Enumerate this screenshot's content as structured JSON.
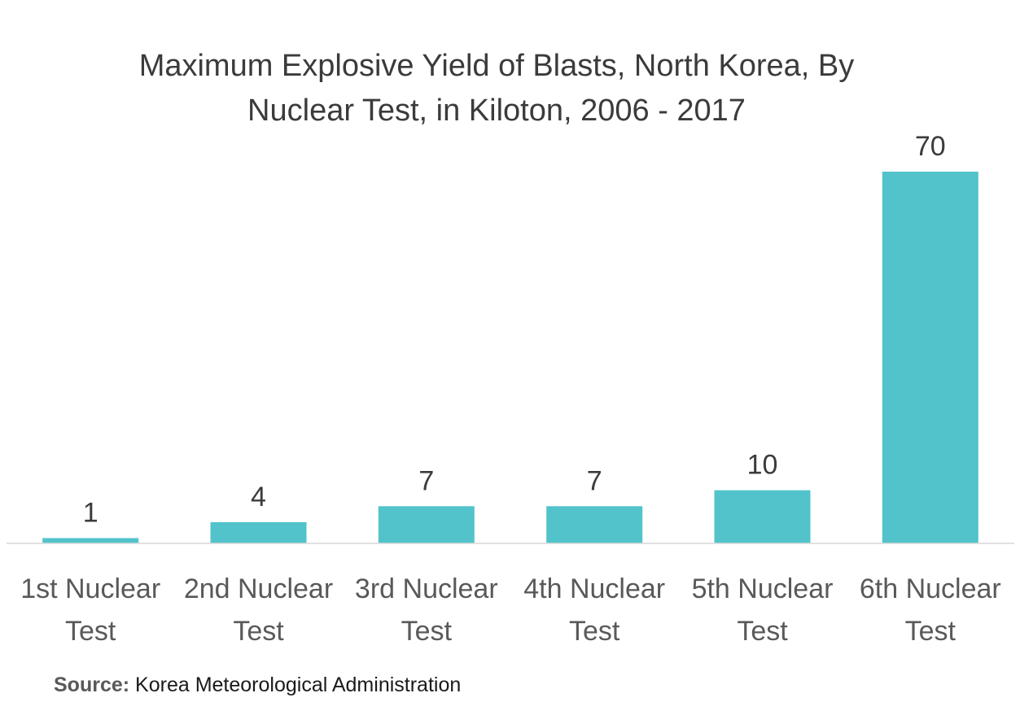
{
  "chart_data": {
    "type": "bar",
    "title_lines": [
      "Maximum Explosive Yield of Blasts, North Korea, By",
      "Nuclear Test, in Kiloton, 2006 - 2017"
    ],
    "categories": [
      [
        "1st Nuclear",
        "Test"
      ],
      [
        "2nd Nuclear",
        "Test"
      ],
      [
        "3rd Nuclear",
        "Test"
      ],
      [
        "4th Nuclear",
        "Test"
      ],
      [
        "5th Nuclear",
        "Test"
      ],
      [
        "6th Nuclear",
        "Test"
      ]
    ],
    "values": [
      1,
      4,
      7,
      7,
      10,
      70
    ],
    "data_labels": [
      "1",
      "4",
      "7",
      "7",
      "10",
      "70"
    ],
    "ylim": [
      0,
      70
    ],
    "grid": false,
    "legend": "none",
    "colors": {
      "bar": "#52c3cb",
      "axis": "#d9d9d9"
    }
  },
  "source": {
    "key": "Source:",
    "text": "Korea Meteorological Administration"
  }
}
